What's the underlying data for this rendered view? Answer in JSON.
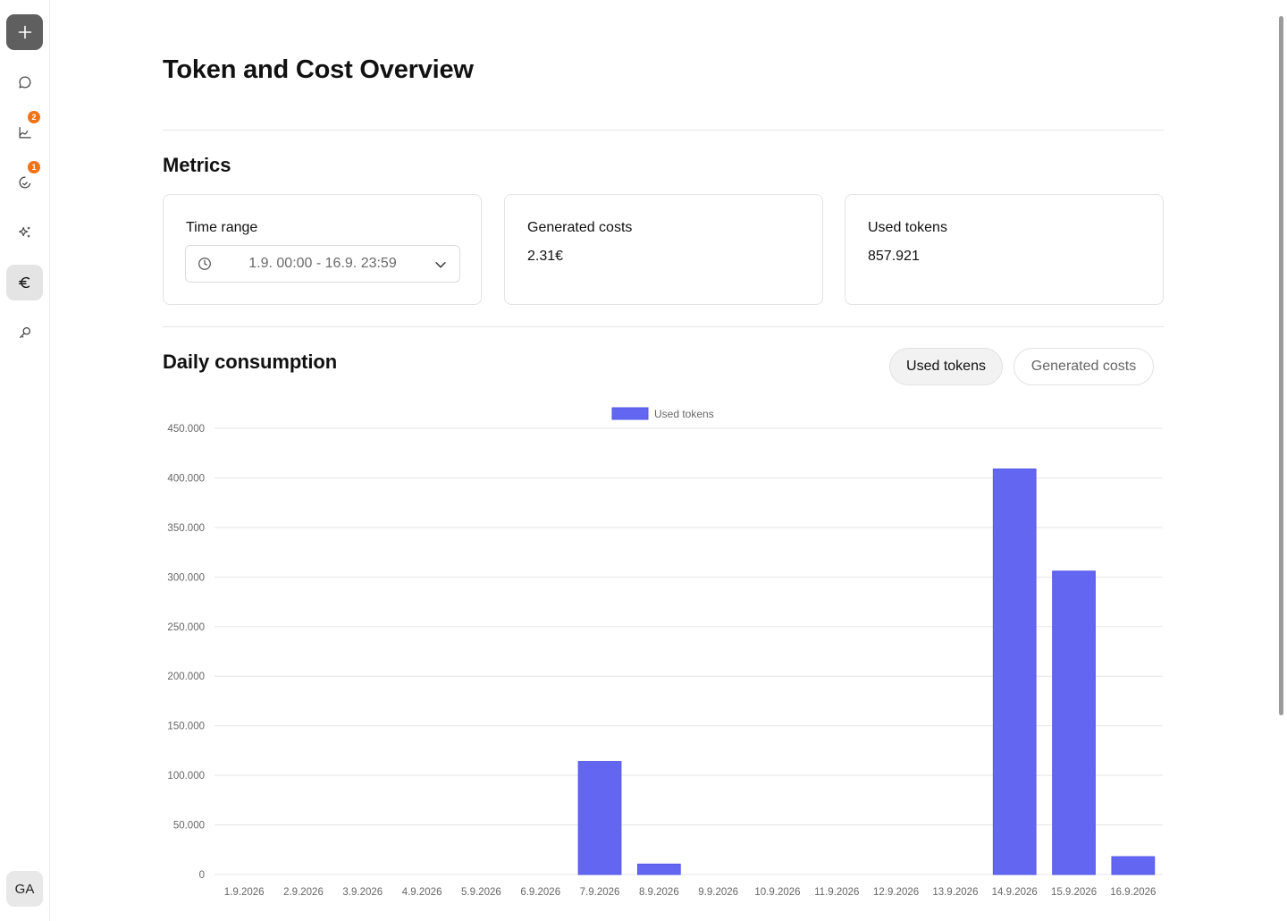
{
  "sidebar": {
    "new_icon": "plus-icon",
    "items": [
      {
        "icon": "chat-bubble-icon",
        "badge": null
      },
      {
        "icon": "chart-line-icon",
        "badge": "2"
      },
      {
        "icon": "gauge-icon",
        "badge": "1"
      },
      {
        "icon": "sparkles-icon",
        "badge": null
      },
      {
        "icon": "euro-icon",
        "badge": null,
        "active": true
      },
      {
        "icon": "key-icon",
        "badge": null
      }
    ],
    "avatar_initials": "GA"
  },
  "page": {
    "title": "Token and Cost Overview"
  },
  "metrics": {
    "title": "Metrics",
    "time_range": {
      "label": "Time range",
      "value": "1.9. 00:00 - 16.9. 23:59"
    },
    "generated_costs": {
      "label": "Generated costs",
      "value": "2.31€"
    },
    "used_tokens": {
      "label": "Used tokens",
      "value": "857.921"
    }
  },
  "daily": {
    "title": "Daily consumption",
    "toggles": [
      {
        "label": "Used tokens",
        "active": true
      },
      {
        "label": "Generated costs",
        "active": false
      }
    ]
  },
  "chart_data": {
    "type": "bar",
    "categories": [
      "1.9.2026",
      "2.9.2026",
      "3.9.2026",
      "4.9.2026",
      "5.9.2026",
      "6.9.2026",
      "7.9.2026",
      "8.9.2026",
      "9.9.2026",
      "10.9.2026",
      "11.9.2026",
      "12.9.2026",
      "13.9.2026",
      "14.9.2026",
      "15.9.2026",
      "16.9.2026"
    ],
    "series": [
      {
        "name": "Used tokens",
        "color": "#6366f1",
        "values": [
          0,
          0,
          0,
          0,
          0,
          0,
          114000,
          10500,
          0,
          0,
          0,
          0,
          0,
          409000,
          306000,
          18000
        ]
      }
    ],
    "ylim": [
      0,
      450000
    ],
    "yticks": [
      0,
      50000,
      100000,
      150000,
      200000,
      250000,
      300000,
      350000,
      400000,
      450000
    ],
    "ytick_labels": [
      "0",
      "50.000",
      "100.000",
      "150.000",
      "200.000",
      "250.000",
      "300.000",
      "350.000",
      "400.000",
      "450.000"
    ],
    "legend": "top-center",
    "grid": true
  }
}
